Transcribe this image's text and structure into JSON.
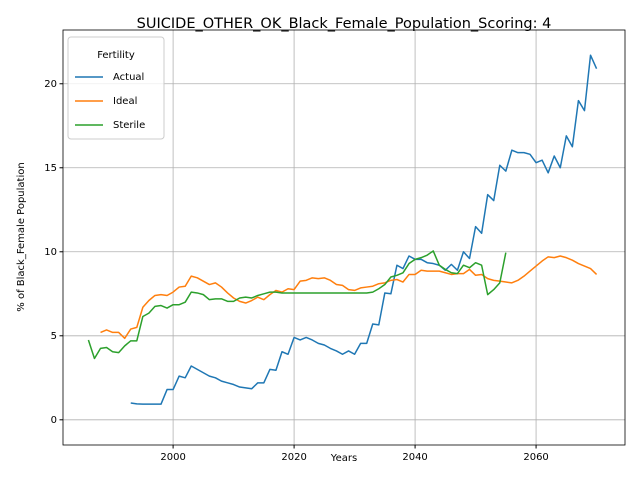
{
  "chart_data": {
    "type": "line",
    "title": "SUICIDE_OTHER_OK_Black_Female_Population_Scoring: 4",
    "x_label": "Years",
    "y_label": "% of Black_Female Population",
    "legend_title": "Fertility",
    "legend": "upper left",
    "grid": true,
    "x": [
      1986,
      1987,
      1988,
      1989,
      1990,
      1991,
      1992,
      1993,
      1994,
      1995,
      1996,
      1997,
      1998,
      1999,
      2000,
      2001,
      2002,
      2003,
      2004,
      2005,
      2006,
      2007,
      2008,
      2009,
      2010,
      2011,
      2012,
      2013,
      2014,
      2015,
      2016,
      2017,
      2018,
      2019,
      2020,
      2021,
      2022,
      2023,
      2024,
      2025,
      2026,
      2027,
      2028,
      2029,
      2030,
      2031,
      2032,
      2033,
      2034,
      2035,
      2036,
      2037,
      2038,
      2039,
      2040,
      2041,
      2042,
      2043,
      2044,
      2045,
      2046,
      2047,
      2048,
      2049,
      2050,
      2051,
      2052,
      2053,
      2054,
      2055,
      2056,
      2057,
      2058,
      2059,
      2060,
      2061,
      2062,
      2063,
      2064,
      2065,
      2066,
      2067,
      2068,
      2069,
      2070
    ],
    "series": [
      {
        "name": "Actual",
        "color": "#1f77b4",
        "values": [
          null,
          null,
          null,
          null,
          null,
          null,
          null,
          1.0,
          0.95,
          0.93,
          0.93,
          0.93,
          0.93,
          1.8,
          1.8,
          2.6,
          2.5,
          3.2,
          3.0,
          2.8,
          2.6,
          2.5,
          2.3,
          2.2,
          2.1,
          1.95,
          1.9,
          1.85,
          2.2,
          2.2,
          3.0,
          2.95,
          4.05,
          3.9,
          4.9,
          4.75,
          4.9,
          4.75,
          4.55,
          4.45,
          4.25,
          4.1,
          3.9,
          4.1,
          3.9,
          4.55,
          4.55,
          5.7,
          5.65,
          7.55,
          7.5,
          9.2,
          9.0,
          9.75,
          9.55,
          9.55,
          9.35,
          9.3,
          9.2,
          8.9,
          9.25,
          8.9,
          10.0,
          9.6,
          11.5,
          11.1,
          13.4,
          13.05,
          15.15,
          14.8,
          16.05,
          15.9,
          15.9,
          15.8,
          15.3,
          15.45,
          14.7,
          15.7,
          15.0,
          16.9,
          16.25,
          19.0,
          18.4,
          21.7,
          20.9
        ]
      },
      {
        "name": "Ideal",
        "color": "#ff7f0e",
        "values": [
          null,
          null,
          5.2,
          5.35,
          5.2,
          5.2,
          4.85,
          5.4,
          5.5,
          6.7,
          7.1,
          7.4,
          7.45,
          7.4,
          7.6,
          7.9,
          7.95,
          8.55,
          8.45,
          8.25,
          8.05,
          8.15,
          7.9,
          7.55,
          7.25,
          7.05,
          6.95,
          7.1,
          7.3,
          7.15,
          7.45,
          7.7,
          7.6,
          7.8,
          7.75,
          8.25,
          8.3,
          8.45,
          8.4,
          8.45,
          8.3,
          8.05,
          8.0,
          7.75,
          7.7,
          7.85,
          7.9,
          7.95,
          8.1,
          8.15,
          8.3,
          8.35,
          8.2,
          8.65,
          8.65,
          8.9,
          8.85,
          8.85,
          8.85,
          8.75,
          8.65,
          8.7,
          8.7,
          8.95,
          8.6,
          8.65,
          8.4,
          8.3,
          8.25,
          8.2,
          8.15,
          8.3,
          8.55,
          8.85,
          9.15,
          9.45,
          9.7,
          9.65,
          9.75,
          9.65,
          9.5,
          9.3,
          9.15,
          9.0,
          8.65
        ]
      },
      {
        "name": "Sterile",
        "color": "#2ca02c",
        "values": [
          4.75,
          3.65,
          4.25,
          4.3,
          4.05,
          4.0,
          4.4,
          4.7,
          4.7,
          6.15,
          6.35,
          6.75,
          6.8,
          6.65,
          6.85,
          6.85,
          7.0,
          7.6,
          7.55,
          7.45,
          7.15,
          7.2,
          7.2,
          7.05,
          7.05,
          7.25,
          7.3,
          7.25,
          7.4,
          7.5,
          7.6,
          7.6,
          7.55,
          7.55,
          7.55,
          7.55,
          7.55,
          7.55,
          7.55,
          7.55,
          7.55,
          7.55,
          7.55,
          7.55,
          7.55,
          7.55,
          7.55,
          7.6,
          7.8,
          8.05,
          8.5,
          8.6,
          8.75,
          9.3,
          9.55,
          9.65,
          9.8,
          10.05,
          9.2,
          8.95,
          8.75,
          8.7,
          9.2,
          9.05,
          9.35,
          9.2,
          7.45,
          7.75,
          8.15,
          9.95,
          null,
          null,
          null,
          null,
          null,
          null,
          null,
          null,
          null,
          null,
          null,
          null,
          null,
          null,
          null
        ]
      }
    ],
    "xlim": [
      1981.8,
      2074.7
    ],
    "xticks": [
      2000,
      2020,
      2040,
      2060
    ],
    "ylim": [
      -1.5,
      23.2
    ],
    "yticks": [
      0,
      5,
      10,
      15,
      20
    ]
  }
}
